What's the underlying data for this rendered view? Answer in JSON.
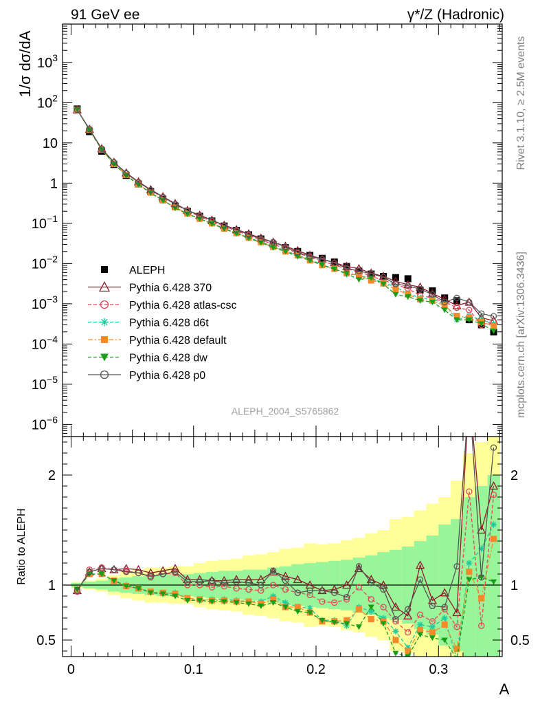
{
  "header": {
    "left_title": "91 GeV ee",
    "right_title": "γ*/Z (Hadronic)"
  },
  "side_texts": {
    "rivet": "Rivet 3.1.10, ≥ 2.5M events",
    "mcplots": "mcplots.cern.ch [arXiv:1306.3436]"
  },
  "analysis_label": "ALEPH_2004_S5765862",
  "chart_data": [
    {
      "panel": "main",
      "type": "scatter",
      "ylabel": "1/σ  dσ/dA",
      "xlabel": "A",
      "yscale": "log",
      "ylim": [
        5e-07,
        9000
      ],
      "xlim": [
        -0.007,
        0.352
      ],
      "yticks": [
        "10^-6",
        "10^-5",
        "10^-4",
        "10^-3",
        "10^-2",
        "10^-1",
        "1",
        "10",
        "10^2",
        "10^3"
      ],
      "legend_position": "middle-left",
      "x": [
        0.005,
        0.015,
        0.025,
        0.035,
        0.045,
        0.055,
        0.065,
        0.075,
        0.085,
        0.095,
        0.105,
        0.115,
        0.125,
        0.135,
        0.145,
        0.155,
        0.165,
        0.175,
        0.185,
        0.195,
        0.205,
        0.215,
        0.225,
        0.235,
        0.245,
        0.255,
        0.265,
        0.275,
        0.285,
        0.295,
        0.305,
        0.315,
        0.325,
        0.335,
        0.345
      ],
      "series": [
        {
          "name": "ALEPH",
          "color": "#000000",
          "marker": "filled-square",
          "line": "none",
          "values": [
            70,
            19,
            6.2,
            2.9,
            1.55,
            0.95,
            0.62,
            0.4,
            0.27,
            0.2,
            0.15,
            0.115,
            0.086,
            0.067,
            0.052,
            0.041,
            0.03,
            0.025,
            0.02,
            0.016,
            0.0135,
            0.011,
            0.0085,
            0.0065,
            0.0055,
            0.0048,
            0.0045,
            0.0042,
            0.0022,
            0.0021,
            0.0014,
            0.0012,
            0.0004,
            0.0003,
            0.0002
          ]
        },
        {
          "name": "Pythia 6.428 370",
          "color": "#8b1a2b",
          "marker": "open-triangle",
          "line": "solid",
          "values": [
            66,
            22,
            7.2,
            3.3,
            1.8,
            1.08,
            0.69,
            0.46,
            0.31,
            0.21,
            0.16,
            0.12,
            0.09,
            0.07,
            0.055,
            0.043,
            0.034,
            0.027,
            0.021,
            0.016,
            0.013,
            0.0105,
            0.0085,
            0.0075,
            0.0058,
            0.0048,
            0.0036,
            0.003,
            0.0026,
            0.0018,
            0.0013,
            0.0009,
            0.0011,
            0.00045,
            0.00038
          ]
        },
        {
          "name": "Pythia 6.428 atlas-csc",
          "color": "#e8445a",
          "marker": "open-circle",
          "line": "dashed",
          "values": [
            66,
            22,
            7.1,
            3.3,
            1.75,
            1.05,
            0.66,
            0.44,
            0.3,
            0.2,
            0.15,
            0.112,
            0.085,
            0.065,
            0.05,
            0.039,
            0.03,
            0.024,
            0.018,
            0.0145,
            0.0115,
            0.0092,
            0.0074,
            0.0064,
            0.0048,
            0.0039,
            0.003,
            0.0024,
            0.0016,
            0.0014,
            0.0011,
            0.0008,
            0.0007,
            0.0003,
            0.00036
          ]
        },
        {
          "name": "Pythia 6.428 d6t",
          "color": "#1ec8a0",
          "marker": "star",
          "line": "dashed",
          "values": [
            67,
            21,
            6.8,
            3.0,
            1.6,
            0.92,
            0.58,
            0.37,
            0.25,
            0.175,
            0.13,
            0.1,
            0.075,
            0.058,
            0.044,
            0.035,
            0.027,
            0.021,
            0.016,
            0.013,
            0.0092,
            0.0075,
            0.0054,
            0.0052,
            0.0042,
            0.0034,
            0.0026,
            0.0018,
            0.0014,
            0.0013,
            0.001,
            0.0004,
            0.0005,
            0.0004,
            0.00032
          ]
        },
        {
          "name": "Pythia 6.428 default",
          "color": "#f58a2a",
          "marker": "filled-square",
          "line": "dashdot",
          "values": [
            67,
            21,
            6.8,
            3.0,
            1.6,
            0.93,
            0.58,
            0.37,
            0.25,
            0.175,
            0.13,
            0.1,
            0.074,
            0.057,
            0.044,
            0.034,
            0.026,
            0.02,
            0.016,
            0.012,
            0.0091,
            0.0074,
            0.0058,
            0.0051,
            0.0038,
            0.0032,
            0.0023,
            0.0017,
            0.0013,
            0.0012,
            0.0009,
            0.0005,
            0.00045,
            0.00035,
            0.00028
          ]
        },
        {
          "name": "Pythia 6.428 dw",
          "color": "#1a9e1a",
          "marker": "filled-triangle-down",
          "line": "dashed",
          "values": [
            67,
            21,
            6.8,
            3.0,
            1.55,
            0.92,
            0.57,
            0.37,
            0.24,
            0.17,
            0.13,
            0.098,
            0.073,
            0.056,
            0.043,
            0.033,
            0.025,
            0.02,
            0.015,
            0.012,
            0.0092,
            0.0073,
            0.0056,
            0.004,
            0.0044,
            0.0031,
            0.0017,
            0.0015,
            0.0012,
            0.0011,
            0.0007,
            0.0004,
            0.0004,
            0.00032,
            0.00021
          ]
        },
        {
          "name": "Pythia 6.428 p0",
          "color": "#555555",
          "marker": "open-circle",
          "line": "solid",
          "values": [
            66,
            22,
            7.1,
            3.3,
            1.75,
            1.05,
            0.67,
            0.45,
            0.3,
            0.21,
            0.155,
            0.12,
            0.088,
            0.069,
            0.053,
            0.041,
            0.034,
            0.026,
            0.019,
            0.0152,
            0.0128,
            0.0104,
            0.0076,
            0.0065,
            0.0056,
            0.0046,
            0.0031,
            0.0028,
            0.0023,
            0.0017,
            0.0011,
            0.0014,
            0.0011,
            0.00057,
            0.00049
          ]
        }
      ]
    },
    {
      "panel": "ratio",
      "type": "line",
      "ylabel": "Ratio to ALEPH",
      "xlabel": "A",
      "ylim": [
        0.35,
        2.35
      ],
      "yticks": [
        "0.5",
        "1",
        "2"
      ],
      "xticks": [
        "0",
        "0.1",
        "0.2",
        "0.3"
      ],
      "x": [
        0.005,
        0.015,
        0.025,
        0.035,
        0.045,
        0.055,
        0.065,
        0.075,
        0.085,
        0.095,
        0.105,
        0.115,
        0.125,
        0.135,
        0.145,
        0.155,
        0.165,
        0.175,
        0.185,
        0.195,
        0.205,
        0.215,
        0.225,
        0.235,
        0.245,
        0.255,
        0.265,
        0.275,
        0.285,
        0.295,
        0.305,
        0.315,
        0.325,
        0.335,
        0.345
      ],
      "band_outer_halfwidth": [
        0.03,
        0.04,
        0.06,
        0.09,
        0.12,
        0.14,
        0.16,
        0.16,
        0.17,
        0.17,
        0.2,
        0.22,
        0.23,
        0.24,
        0.27,
        0.28,
        0.3,
        0.33,
        0.34,
        0.38,
        0.37,
        0.38,
        0.41,
        0.43,
        0.47,
        0.5,
        0.6,
        0.62,
        0.68,
        0.74,
        0.8,
        0.95,
        1.2,
        1.3,
        1.4
      ],
      "band_inner_halfwidth": [
        0.02,
        0.03,
        0.04,
        0.06,
        0.07,
        0.08,
        0.09,
        0.1,
        0.1,
        0.1,
        0.11,
        0.12,
        0.13,
        0.13,
        0.14,
        0.14,
        0.16,
        0.17,
        0.19,
        0.2,
        0.21,
        0.22,
        0.23,
        0.25,
        0.27,
        0.3,
        0.32,
        0.35,
        0.4,
        0.45,
        0.55,
        0.6,
        0.8,
        0.9,
        1.0
      ],
      "series": [
        {
          "name": "Pythia 6.428 370",
          "color": "#8b1a2b",
          "values": [
            0.95,
            1.12,
            1.15,
            1.14,
            1.15,
            1.14,
            1.11,
            1.13,
            1.15,
            1.05,
            1.05,
            1.04,
            1.04,
            1.05,
            1.05,
            1.05,
            1.12,
            1.08,
            1.05,
            1.0,
            0.95,
            0.96,
            1.0,
            1.15,
            1.05,
            1.0,
            0.8,
            0.72,
            1.18,
            0.86,
            0.93,
            0.75,
            2.75,
            1.5,
            1.9
          ]
        },
        {
          "name": "Pythia 6.428 atlas-csc",
          "color": "#e8445a",
          "values": [
            0.94,
            1.14,
            1.16,
            1.14,
            1.13,
            1.11,
            1.07,
            1.1,
            1.11,
            1.0,
            1.0,
            0.98,
            0.99,
            0.97,
            0.96,
            0.95,
            1.0,
            0.96,
            0.93,
            0.91,
            0.85,
            0.84,
            0.87,
            0.98,
            0.87,
            0.8,
            0.67,
            0.57,
            0.73,
            0.67,
            0.78,
            0.62,
            1.85,
            0.63,
            1.82
          ]
        },
        {
          "name": "Pythia 6.428 d6t",
          "color": "#1ec8a0",
          "values": [
            0.96,
            1.1,
            1.1,
            1.04,
            1.0,
            0.97,
            0.94,
            0.92,
            0.93,
            0.88,
            0.86,
            0.87,
            0.87,
            0.86,
            0.85,
            0.85,
            0.9,
            0.84,
            0.8,
            0.79,
            0.68,
            0.68,
            0.63,
            0.8,
            0.76,
            0.7,
            0.58,
            0.43,
            0.64,
            0.62,
            0.7,
            0.33,
            1.2,
            1.33,
            1.55
          ]
        },
        {
          "name": "Pythia 6.428 default",
          "color": "#f58a2a",
          "values": [
            0.96,
            1.1,
            1.1,
            1.04,
            0.99,
            0.97,
            0.94,
            0.93,
            0.92,
            0.88,
            0.87,
            0.86,
            0.86,
            0.85,
            0.85,
            0.83,
            0.87,
            0.8,
            0.8,
            0.75,
            0.67,
            0.67,
            0.68,
            0.78,
            0.69,
            0.67,
            0.5,
            0.4,
            0.59,
            0.57,
            0.64,
            0.42,
            1.12,
            0.88,
            1.42
          ]
        },
        {
          "name": "Pythia 6.428 dw",
          "color": "#1a9e1a",
          "values": [
            0.96,
            1.1,
            1.1,
            1.04,
            0.99,
            0.97,
            0.93,
            0.92,
            0.9,
            0.86,
            0.86,
            0.85,
            0.85,
            0.84,
            0.83,
            0.81,
            0.84,
            0.8,
            0.76,
            0.75,
            0.68,
            0.66,
            0.65,
            0.62,
            0.8,
            0.65,
            0.38,
            0.35,
            0.55,
            0.52,
            0.5,
            0.33,
            1.05,
            1.07,
            1.03
          ]
        },
        {
          "name": "Pythia 6.428 p0",
          "color": "#555555",
          "values": [
            0.95,
            1.12,
            1.15,
            1.14,
            1.12,
            1.11,
            1.08,
            1.1,
            1.12,
            1.03,
            1.03,
            1.04,
            1.02,
            1.03,
            1.02,
            1.0,
            1.13,
            1.04,
            0.93,
            0.95,
            0.95,
            0.93,
            0.89,
            1.17,
            1.02,
            0.96,
            0.69,
            0.78,
            1.05,
            0.81,
            0.8,
            1.17,
            2.75,
            1.07,
            2.25
          ]
        }
      ]
    }
  ]
}
